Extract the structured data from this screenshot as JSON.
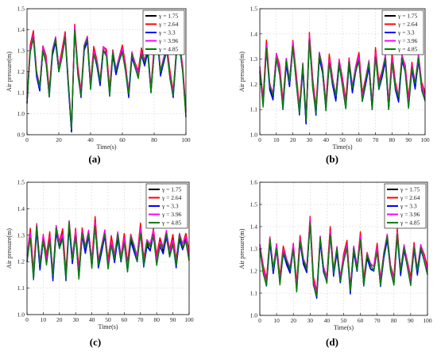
{
  "figure": {
    "panel_labels": [
      "(a)",
      "(b)",
      "(c)",
      "(d)"
    ]
  },
  "chart_data": [
    {
      "type": "line",
      "panel": "(a)",
      "xlabel": "Time(s)",
      "ylabel": "Air pressure(m)",
      "xlim": [
        0,
        100
      ],
      "ylim": [
        0.9,
        1.5
      ],
      "xticks": [
        0,
        20,
        40,
        60,
        80,
        100
      ],
      "yticks": [
        0.9,
        1.0,
        1.1,
        1.2,
        1.3,
        1.4,
        1.5
      ],
      "grid": true,
      "legend_position": "top-right",
      "series": [
        {
          "name": "γ = 1.75",
          "color": "#000000"
        },
        {
          "name": "γ = 2.64",
          "color": "#ff0000"
        },
        {
          "name": "γ = 3.3",
          "color": "#0000ff"
        },
        {
          "name": "γ = 3.96",
          "color": "#ff00ff"
        },
        {
          "name": "γ = 4.85",
          "color": "#008000"
        }
      ],
      "x": [
        0,
        2,
        4,
        6,
        8,
        10,
        12,
        14,
        16,
        18,
        20,
        22,
        24,
        26,
        28,
        30,
        32,
        34,
        36,
        38,
        40,
        42,
        44,
        46,
        48,
        50,
        52,
        54,
        56,
        58,
        60,
        62,
        64,
        66,
        68,
        70,
        72,
        74,
        76,
        78,
        80,
        82,
        84,
        86,
        88,
        90,
        92,
        94,
        96,
        98,
        100
      ],
      "y": [
        1.05,
        1.3,
        1.38,
        1.2,
        1.12,
        1.3,
        1.25,
        1.1,
        1.3,
        1.35,
        1.2,
        1.28,
        1.38,
        1.15,
        0.92,
        1.4,
        1.2,
        1.1,
        1.32,
        1.35,
        1.12,
        1.3,
        1.25,
        1.15,
        1.3,
        1.28,
        1.1,
        1.3,
        1.2,
        1.25,
        1.3,
        1.22,
        1.1,
        1.28,
        1.22,
        1.18,
        1.3,
        1.25,
        1.3,
        1.1,
        1.3,
        1.38,
        1.2,
        1.25,
        1.3,
        1.18,
        1.1,
        1.3,
        1.32,
        1.2,
        1.0
      ]
    },
    {
      "type": "line",
      "panel": "(b)",
      "xlabel": "Time(s)",
      "ylabel": "Air pressure(m)",
      "xlim": [
        0,
        100
      ],
      "ylim": [
        1.0,
        1.5
      ],
      "xticks": [
        0,
        10,
        20,
        30,
        40,
        50,
        60,
        70,
        80,
        90,
        100
      ],
      "yticks": [
        1.0,
        1.1,
        1.2,
        1.3,
        1.4,
        1.5
      ],
      "grid": true,
      "legend_position": "top-right",
      "series": [
        {
          "name": "γ = 1.75",
          "color": "#000000"
        },
        {
          "name": "γ = 2.64",
          "color": "#ff0000"
        },
        {
          "name": "γ = 3.3",
          "color": "#0000ff"
        },
        {
          "name": "γ = 3.96",
          "color": "#ff00ff"
        },
        {
          "name": "γ = 4.85",
          "color": "#008000"
        }
      ],
      "x": [
        0,
        2,
        4,
        6,
        8,
        10,
        12,
        14,
        16,
        18,
        20,
        22,
        24,
        26,
        28,
        30,
        32,
        34,
        36,
        38,
        40,
        42,
        44,
        46,
        48,
        50,
        52,
        54,
        56,
        58,
        60,
        62,
        64,
        66,
        68,
        70,
        72,
        74,
        76,
        78,
        80,
        82,
        84,
        86,
        88,
        90,
        92,
        94,
        96,
        98,
        100
      ],
      "y": [
        1.25,
        1.12,
        1.36,
        1.2,
        1.15,
        1.3,
        1.25,
        1.12,
        1.3,
        1.2,
        1.35,
        1.22,
        1.1,
        1.28,
        1.05,
        1.38,
        1.2,
        1.1,
        1.32,
        1.25,
        1.1,
        1.3,
        1.22,
        1.15,
        1.28,
        1.2,
        1.12,
        1.3,
        1.18,
        1.25,
        1.3,
        1.15,
        1.22,
        1.28,
        1.1,
        1.32,
        1.2,
        1.25,
        1.3,
        1.1,
        1.3,
        1.2,
        1.15,
        1.3,
        1.25,
        1.12,
        1.28,
        1.2,
        1.3,
        1.18,
        1.15
      ]
    },
    {
      "type": "line",
      "panel": "(c)",
      "xlabel": "Time(s)",
      "ylabel": "Air pressure(m)",
      "xlim": [
        0,
        100
      ],
      "ylim": [
        1.0,
        1.5
      ],
      "xticks": [
        0,
        10,
        20,
        30,
        40,
        50,
        60,
        70,
        80,
        90,
        100
      ],
      "yticks": [
        1.0,
        1.1,
        1.2,
        1.3,
        1.4,
        1.5
      ],
      "grid": true,
      "legend_position": "top-right",
      "series": [
        {
          "name": "γ = 1.75",
          "color": "#000000"
        },
        {
          "name": "γ = 2.64",
          "color": "#ff0000"
        },
        {
          "name": "γ = 3.3",
          "color": "#0000ff"
        },
        {
          "name": "γ = 3.96",
          "color": "#ff00ff"
        },
        {
          "name": "γ = 4.85",
          "color": "#008000"
        }
      ],
      "x": [
        0,
        2,
        4,
        6,
        8,
        10,
        12,
        14,
        16,
        18,
        20,
        22,
        24,
        26,
        28,
        30,
        32,
        34,
        36,
        38,
        40,
        42,
        44,
        46,
        48,
        50,
        52,
        54,
        56,
        58,
        60,
        62,
        64,
        66,
        68,
        70,
        72,
        74,
        76,
        78,
        80,
        82,
        84,
        86,
        88,
        90,
        92,
        94,
        96,
        98,
        100
      ],
      "y": [
        1.2,
        1.3,
        1.15,
        1.34,
        1.18,
        1.28,
        1.2,
        1.3,
        1.15,
        1.32,
        1.25,
        1.3,
        1.15,
        1.35,
        1.2,
        1.3,
        1.15,
        1.32,
        1.25,
        1.3,
        1.18,
        1.35,
        1.2,
        1.25,
        1.3,
        1.18,
        1.28,
        1.22,
        1.3,
        1.2,
        1.28,
        1.18,
        1.3,
        1.25,
        1.2,
        1.32,
        1.2,
        1.28,
        1.25,
        1.3,
        1.2,
        1.28,
        1.25,
        1.3,
        1.22,
        1.28,
        1.2,
        1.3,
        1.25,
        1.28,
        1.22
      ]
    },
    {
      "type": "line",
      "panel": "(d)",
      "xlabel": "Time(s)",
      "ylabel": "Air pressure(m)",
      "xlim": [
        0,
        100
      ],
      "ylim": [
        1.0,
        1.6
      ],
      "xticks": [
        0,
        10,
        20,
        30,
        40,
        50,
        60,
        70,
        80,
        90,
        100
      ],
      "yticks": [
        1.0,
        1.1,
        1.2,
        1.3,
        1.4,
        1.5,
        1.6
      ],
      "grid": true,
      "legend_position": "top-right",
      "series": [
        {
          "name": "γ = 1.75",
          "color": "#000000"
        },
        {
          "name": "γ = 2.64",
          "color": "#ff0000"
        },
        {
          "name": "γ = 3.3",
          "color": "#0000ff"
        },
        {
          "name": "γ = 3.96",
          "color": "#ff00ff"
        },
        {
          "name": "γ = 4.85",
          "color": "#008000"
        }
      ],
      "x": [
        0,
        2,
        4,
        6,
        8,
        10,
        12,
        14,
        16,
        18,
        20,
        22,
        24,
        26,
        28,
        30,
        32,
        34,
        36,
        38,
        40,
        42,
        44,
        46,
        48,
        50,
        52,
        54,
        56,
        58,
        60,
        62,
        64,
        66,
        68,
        70,
        72,
        74,
        76,
        78,
        80,
        82,
        84,
        86,
        88,
        90,
        92,
        94,
        96,
        98,
        100
      ],
      "y": [
        1.3,
        1.2,
        1.15,
        1.35,
        1.2,
        1.3,
        1.15,
        1.3,
        1.25,
        1.2,
        1.3,
        1.12,
        1.35,
        1.25,
        1.2,
        1.42,
        1.15,
        1.1,
        1.35,
        1.2,
        1.15,
        1.38,
        1.2,
        1.3,
        1.15,
        1.25,
        1.32,
        1.12,
        1.3,
        1.2,
        1.35,
        1.15,
        1.28,
        1.22,
        1.2,
        1.3,
        1.15,
        1.28,
        1.35,
        1.2,
        1.15,
        1.38,
        1.2,
        1.3,
        1.22,
        1.15,
        1.32,
        1.2,
        1.3,
        1.25,
        1.2
      ]
    }
  ]
}
